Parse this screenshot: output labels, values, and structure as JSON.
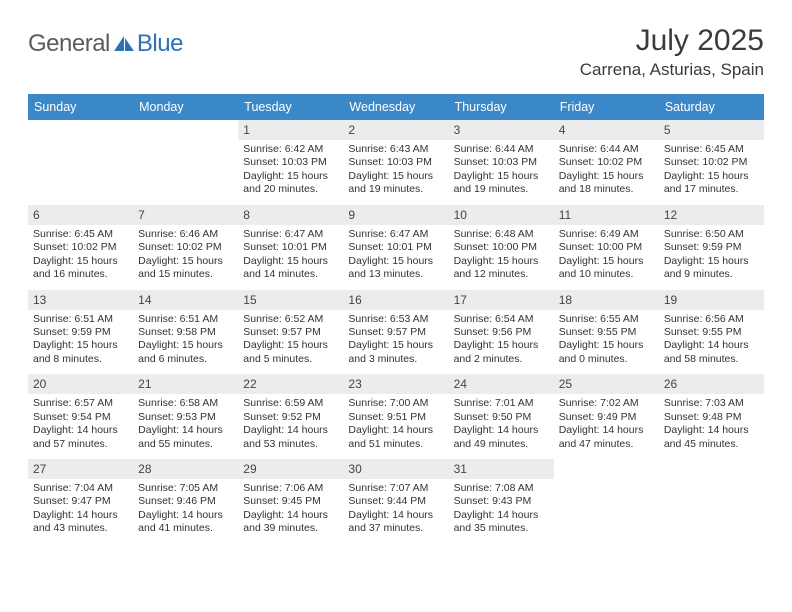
{
  "logo": {
    "general": "General",
    "blue": "Blue"
  },
  "title": "July 2025",
  "location": "Carrena, Asturias, Spain",
  "colors": {
    "header_bg": "#3b88c8",
    "header_text": "#ffffff",
    "daynum_bg": "#ececec",
    "cell_border": "#3b88c8",
    "logo_gray": "#5c5c5c",
    "logo_blue": "#2d72b5",
    "body_text": "#333333"
  },
  "day_headers": [
    "Sunday",
    "Monday",
    "Tuesday",
    "Wednesday",
    "Thursday",
    "Friday",
    "Saturday"
  ],
  "weeks": [
    [
      {
        "n": "",
        "sr": "",
        "ss": "",
        "dl": ""
      },
      {
        "n": "",
        "sr": "",
        "ss": "",
        "dl": ""
      },
      {
        "n": "1",
        "sr": "Sunrise: 6:42 AM",
        "ss": "Sunset: 10:03 PM",
        "dl": "Daylight: 15 hours and 20 minutes."
      },
      {
        "n": "2",
        "sr": "Sunrise: 6:43 AM",
        "ss": "Sunset: 10:03 PM",
        "dl": "Daylight: 15 hours and 19 minutes."
      },
      {
        "n": "3",
        "sr": "Sunrise: 6:44 AM",
        "ss": "Sunset: 10:03 PM",
        "dl": "Daylight: 15 hours and 19 minutes."
      },
      {
        "n": "4",
        "sr": "Sunrise: 6:44 AM",
        "ss": "Sunset: 10:02 PM",
        "dl": "Daylight: 15 hours and 18 minutes."
      },
      {
        "n": "5",
        "sr": "Sunrise: 6:45 AM",
        "ss": "Sunset: 10:02 PM",
        "dl": "Daylight: 15 hours and 17 minutes."
      }
    ],
    [
      {
        "n": "6",
        "sr": "Sunrise: 6:45 AM",
        "ss": "Sunset: 10:02 PM",
        "dl": "Daylight: 15 hours and 16 minutes."
      },
      {
        "n": "7",
        "sr": "Sunrise: 6:46 AM",
        "ss": "Sunset: 10:02 PM",
        "dl": "Daylight: 15 hours and 15 minutes."
      },
      {
        "n": "8",
        "sr": "Sunrise: 6:47 AM",
        "ss": "Sunset: 10:01 PM",
        "dl": "Daylight: 15 hours and 14 minutes."
      },
      {
        "n": "9",
        "sr": "Sunrise: 6:47 AM",
        "ss": "Sunset: 10:01 PM",
        "dl": "Daylight: 15 hours and 13 minutes."
      },
      {
        "n": "10",
        "sr": "Sunrise: 6:48 AM",
        "ss": "Sunset: 10:00 PM",
        "dl": "Daylight: 15 hours and 12 minutes."
      },
      {
        "n": "11",
        "sr": "Sunrise: 6:49 AM",
        "ss": "Sunset: 10:00 PM",
        "dl": "Daylight: 15 hours and 10 minutes."
      },
      {
        "n": "12",
        "sr": "Sunrise: 6:50 AM",
        "ss": "Sunset: 9:59 PM",
        "dl": "Daylight: 15 hours and 9 minutes."
      }
    ],
    [
      {
        "n": "13",
        "sr": "Sunrise: 6:51 AM",
        "ss": "Sunset: 9:59 PM",
        "dl": "Daylight: 15 hours and 8 minutes."
      },
      {
        "n": "14",
        "sr": "Sunrise: 6:51 AM",
        "ss": "Sunset: 9:58 PM",
        "dl": "Daylight: 15 hours and 6 minutes."
      },
      {
        "n": "15",
        "sr": "Sunrise: 6:52 AM",
        "ss": "Sunset: 9:57 PM",
        "dl": "Daylight: 15 hours and 5 minutes."
      },
      {
        "n": "16",
        "sr": "Sunrise: 6:53 AM",
        "ss": "Sunset: 9:57 PM",
        "dl": "Daylight: 15 hours and 3 minutes."
      },
      {
        "n": "17",
        "sr": "Sunrise: 6:54 AM",
        "ss": "Sunset: 9:56 PM",
        "dl": "Daylight: 15 hours and 2 minutes."
      },
      {
        "n": "18",
        "sr": "Sunrise: 6:55 AM",
        "ss": "Sunset: 9:55 PM",
        "dl": "Daylight: 15 hours and 0 minutes."
      },
      {
        "n": "19",
        "sr": "Sunrise: 6:56 AM",
        "ss": "Sunset: 9:55 PM",
        "dl": "Daylight: 14 hours and 58 minutes."
      }
    ],
    [
      {
        "n": "20",
        "sr": "Sunrise: 6:57 AM",
        "ss": "Sunset: 9:54 PM",
        "dl": "Daylight: 14 hours and 57 minutes."
      },
      {
        "n": "21",
        "sr": "Sunrise: 6:58 AM",
        "ss": "Sunset: 9:53 PM",
        "dl": "Daylight: 14 hours and 55 minutes."
      },
      {
        "n": "22",
        "sr": "Sunrise: 6:59 AM",
        "ss": "Sunset: 9:52 PM",
        "dl": "Daylight: 14 hours and 53 minutes."
      },
      {
        "n": "23",
        "sr": "Sunrise: 7:00 AM",
        "ss": "Sunset: 9:51 PM",
        "dl": "Daylight: 14 hours and 51 minutes."
      },
      {
        "n": "24",
        "sr": "Sunrise: 7:01 AM",
        "ss": "Sunset: 9:50 PM",
        "dl": "Daylight: 14 hours and 49 minutes."
      },
      {
        "n": "25",
        "sr": "Sunrise: 7:02 AM",
        "ss": "Sunset: 9:49 PM",
        "dl": "Daylight: 14 hours and 47 minutes."
      },
      {
        "n": "26",
        "sr": "Sunrise: 7:03 AM",
        "ss": "Sunset: 9:48 PM",
        "dl": "Daylight: 14 hours and 45 minutes."
      }
    ],
    [
      {
        "n": "27",
        "sr": "Sunrise: 7:04 AM",
        "ss": "Sunset: 9:47 PM",
        "dl": "Daylight: 14 hours and 43 minutes."
      },
      {
        "n": "28",
        "sr": "Sunrise: 7:05 AM",
        "ss": "Sunset: 9:46 PM",
        "dl": "Daylight: 14 hours and 41 minutes."
      },
      {
        "n": "29",
        "sr": "Sunrise: 7:06 AM",
        "ss": "Sunset: 9:45 PM",
        "dl": "Daylight: 14 hours and 39 minutes."
      },
      {
        "n": "30",
        "sr": "Sunrise: 7:07 AM",
        "ss": "Sunset: 9:44 PM",
        "dl": "Daylight: 14 hours and 37 minutes."
      },
      {
        "n": "31",
        "sr": "Sunrise: 7:08 AM",
        "ss": "Sunset: 9:43 PM",
        "dl": "Daylight: 14 hours and 35 minutes."
      },
      {
        "n": "",
        "sr": "",
        "ss": "",
        "dl": ""
      },
      {
        "n": "",
        "sr": "",
        "ss": "",
        "dl": ""
      }
    ]
  ]
}
